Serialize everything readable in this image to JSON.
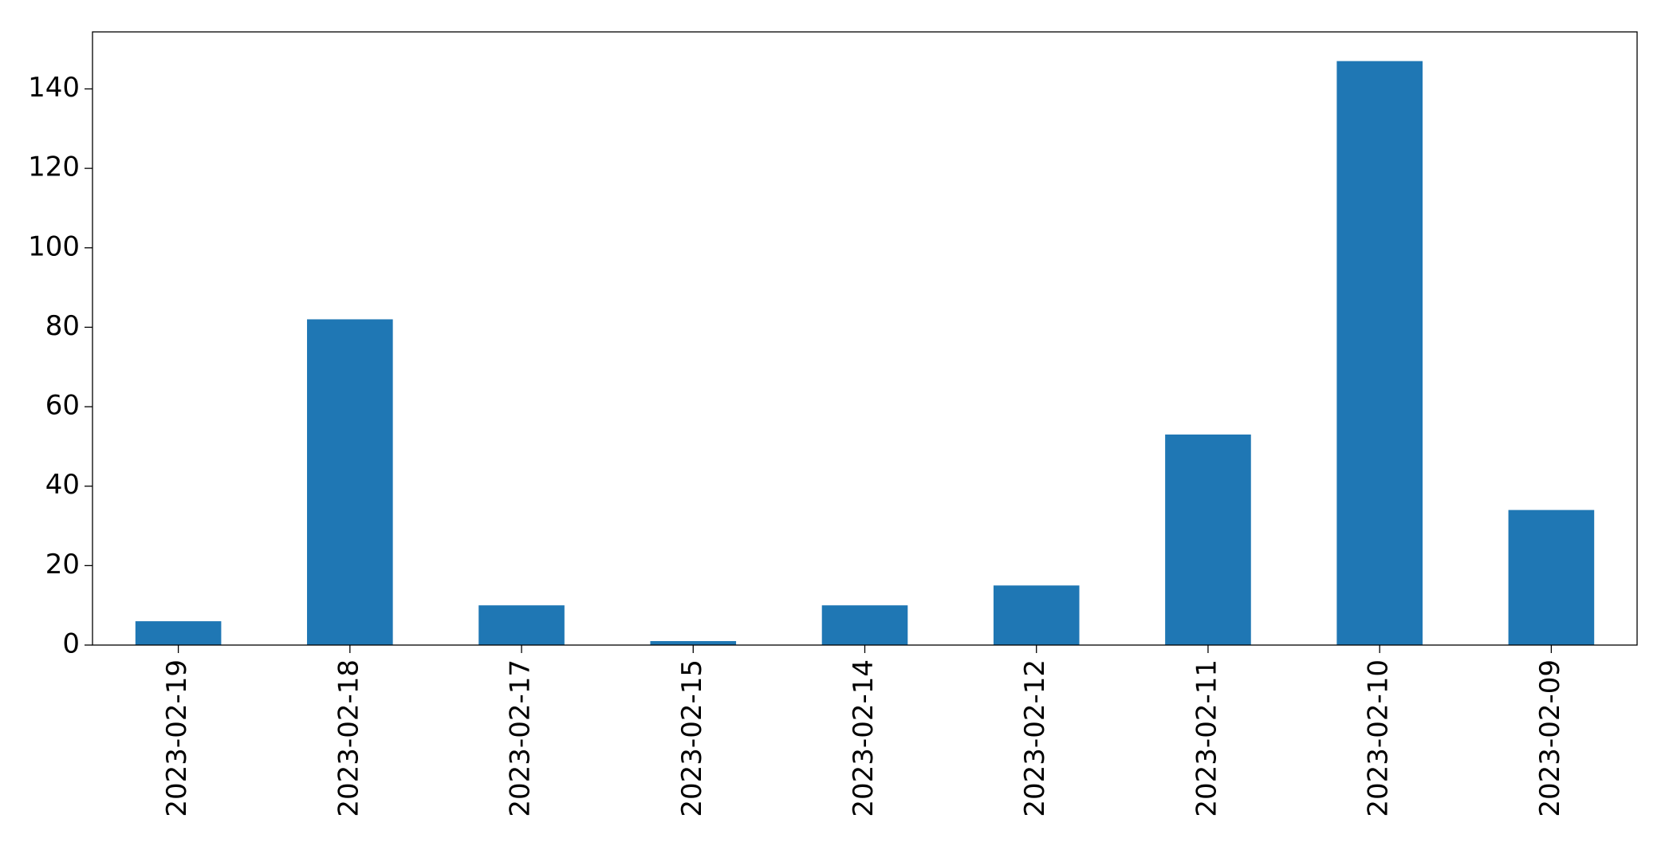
{
  "chart_data": {
    "type": "bar",
    "categories": [
      "2023-02-19",
      "2023-02-18",
      "2023-02-17",
      "2023-02-15",
      "2023-02-14",
      "2023-02-12",
      "2023-02-11",
      "2023-02-10",
      "2023-02-09"
    ],
    "values": [
      6,
      82,
      10,
      1,
      10,
      15,
      53,
      147,
      34
    ],
    "color": "#1f77b4",
    "ylim": [
      0,
      154.35
    ],
    "yticks": [
      0,
      20,
      40,
      60,
      80,
      100,
      120,
      140
    ],
    "grid": false
  }
}
